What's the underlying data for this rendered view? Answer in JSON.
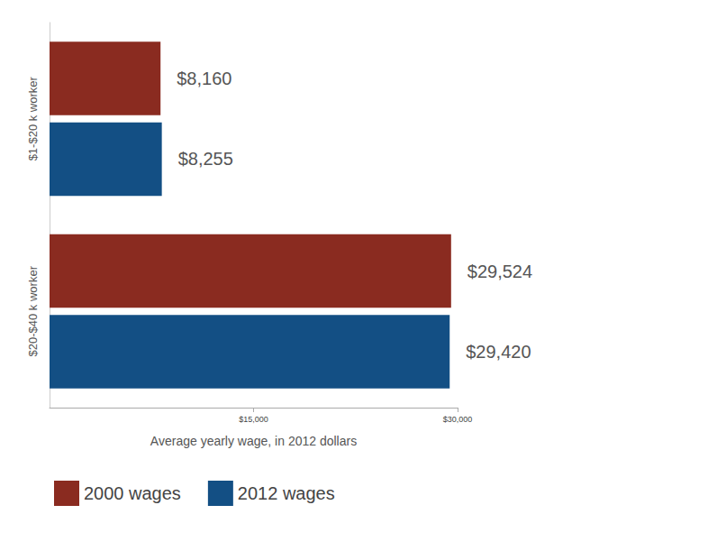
{
  "chart_data": {
    "type": "bar",
    "orientation": "horizontal",
    "categories": [
      "$1-$20 k worker",
      "$20-$40 k worker"
    ],
    "series": [
      {
        "name": "2000 wages",
        "color": "#8a2b20",
        "values": [
          8160,
          29524
        ],
        "value_labels": [
          "$8,160",
          "$29,524"
        ]
      },
      {
        "name": "2012 wages",
        "color": "#134f84",
        "values": [
          8255,
          29420
        ],
        "value_labels": [
          "$8,255",
          "$29,420"
        ]
      }
    ],
    "x_label": "Average yearly wage, in 2012 dollars",
    "xlim": [
      0,
      30000
    ],
    "xticks": [
      {
        "value": 15000,
        "label": "$15,000"
      },
      {
        "value": 30000,
        "label": "$30,000"
      }
    ],
    "grid": false,
    "legend": "bottom-left",
    "data_labels": true
  }
}
